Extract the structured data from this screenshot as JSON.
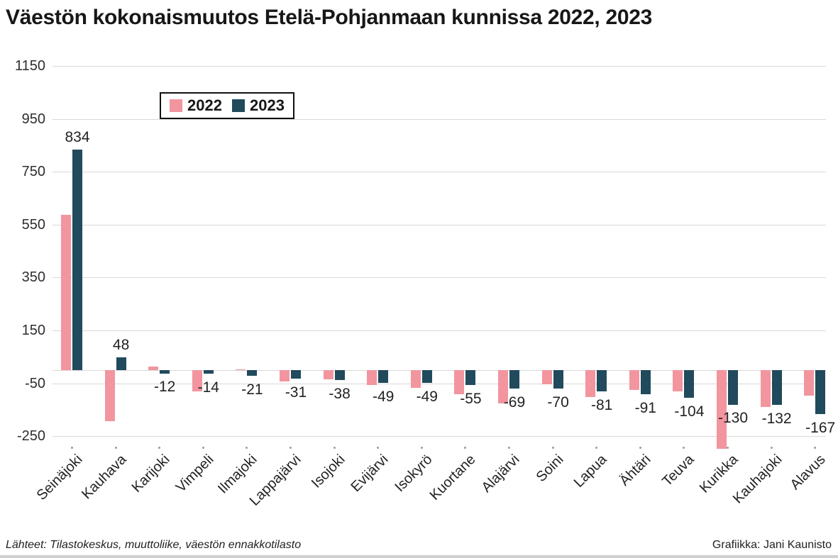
{
  "title": "Väestön kokonaismuutos Etelä-Pohjanmaan kunnissa 2022, 2023",
  "legend": {
    "items": [
      {
        "label": "2022",
        "color": "#f2959f"
      },
      {
        "label": "2023",
        "color": "#214a5c"
      }
    ]
  },
  "footer": {
    "source": "Lähteet: Tilastokeskus, muuttoliike, väestön ennakkotilasto",
    "credit": "Grafiikka: Jani Kaunisto"
  },
  "chart_data": {
    "type": "bar",
    "title": "Väestön kokonaismuutos Etelä-Pohjanmaan kunnissa 2022, 2023",
    "categories": [
      "Seinäjoki",
      "Kauhava",
      "Karijoki",
      "Vimpeli",
      "Ilmajoki",
      "Lappajärvi",
      "Isojoki",
      "Evijärvi",
      "Isokyrö",
      "Kuortane",
      "Alajärvi",
      "Soini",
      "Lapua",
      "Ähtäri",
      "Teuva",
      "Kurikka",
      "Kauhajoki",
      "Alavus"
    ],
    "series": [
      {
        "name": "2022",
        "color": "#f2959f",
        "values": [
          587,
          -194,
          13,
          -81,
          3,
          -42,
          -34,
          -57,
          -68,
          -90,
          -125,
          -54,
          -102,
          -76,
          -81,
          -298,
          -138,
          -96
        ]
      },
      {
        "name": "2023",
        "color": "#214a5c",
        "values": [
          834,
          48,
          -12,
          -14,
          -21,
          -31,
          -38,
          -49,
          -49,
          -55,
          -69,
          -70,
          -81,
          -91,
          -104,
          -130,
          -132,
          -167
        ]
      }
    ],
    "value_labels_series": "2023",
    "value_labels": [
      834,
      48,
      -12,
      -14,
      -21,
      -31,
      -38,
      -49,
      -49,
      -55,
      -69,
      -70,
      -81,
      -91,
      -104,
      -130,
      -132,
      -167
    ],
    "yticks": [
      1150,
      950,
      750,
      550,
      350,
      150,
      -50,
      -250
    ],
    "ylim": [
      -250,
      1150
    ],
    "grid": true,
    "zero_line": true,
    "legend_position": "top-left-inside",
    "xlabel": "",
    "ylabel": ""
  }
}
